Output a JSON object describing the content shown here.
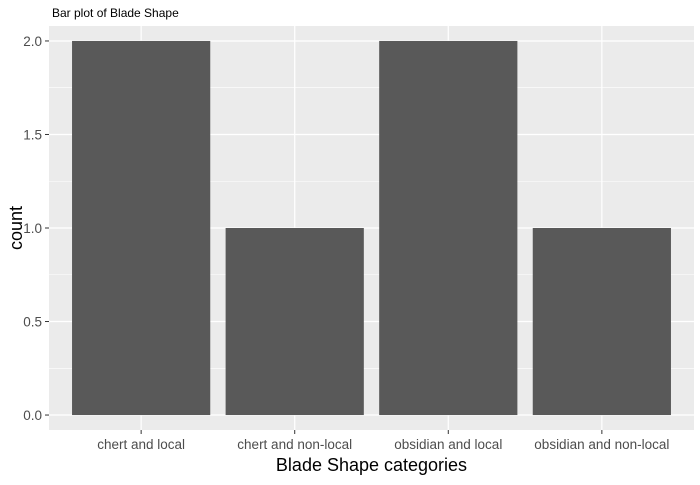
{
  "chart_data": {
    "type": "bar",
    "title": "Bar plot of Blade Shape",
    "xlabel": "Blade Shape categories",
    "ylabel": "count",
    "categories": [
      "chert and local",
      "chert and non-local",
      "obsidian and local",
      "obsidian and non-local"
    ],
    "values": [
      2,
      1,
      2,
      1
    ],
    "ylim": [
      -0.08,
      2.08
    ],
    "yticks": [
      0.0,
      0.5,
      1.0,
      1.5,
      2.0
    ],
    "ytick_labels": [
      "0.0",
      "0.5",
      "1.0",
      "1.5",
      "2.0"
    ],
    "grid": true,
    "legend": "none"
  },
  "colors": {
    "panel_background": "#ebebeb",
    "grid_major": "#ffffff",
    "bar_fill": "#595959",
    "tick_label": "#4d4d4d",
    "axis_title": "#000000"
  }
}
